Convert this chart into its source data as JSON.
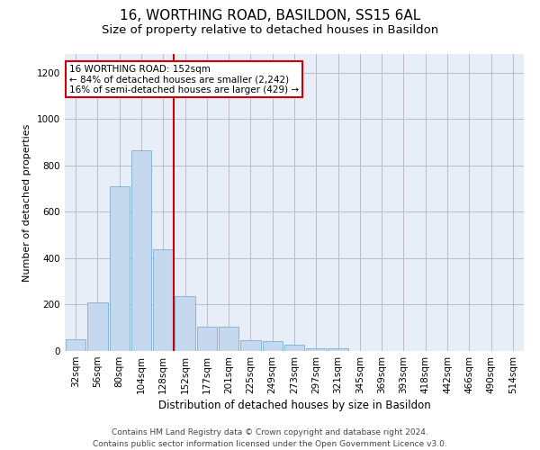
{
  "title": "16, WORTHING ROAD, BASILDON, SS15 6AL",
  "subtitle": "Size of property relative to detached houses in Basildon",
  "xlabel": "Distribution of detached houses by size in Basildon",
  "ylabel": "Number of detached properties",
  "bar_color": "#c5d8ee",
  "bar_edge_color": "#7aadd4",
  "background_color": "#ffffff",
  "plot_bg_color": "#e8eef8",
  "grid_color": "#bbbbcc",
  "categories": [
    "32sqm",
    "56sqm",
    "80sqm",
    "104sqm",
    "128sqm",
    "152sqm",
    "177sqm",
    "201sqm",
    "225sqm",
    "249sqm",
    "273sqm",
    "297sqm",
    "321sqm",
    "345sqm",
    "369sqm",
    "393sqm",
    "418sqm",
    "442sqm",
    "466sqm",
    "490sqm",
    "514sqm"
  ],
  "values": [
    50,
    210,
    710,
    865,
    440,
    235,
    105,
    105,
    48,
    42,
    27,
    10,
    10,
    0,
    0,
    0,
    0,
    0,
    0,
    0,
    0
  ],
  "ylim": [
    0,
    1280
  ],
  "yticks": [
    0,
    200,
    400,
    600,
    800,
    1000,
    1200
  ],
  "property_idx": 5,
  "property_line_label": "16 WORTHING ROAD: 152sqm",
  "annotation_line1": "← 84% of detached houses are smaller (2,242)",
  "annotation_line2": "16% of semi-detached houses are larger (429) →",
  "annotation_box_color": "#ffffff",
  "annotation_box_edge_color": "#cc0000",
  "vline_color": "#cc0000",
  "footnote": "Contains HM Land Registry data © Crown copyright and database right 2024.\nContains public sector information licensed under the Open Government Licence v3.0.",
  "title_fontsize": 11,
  "subtitle_fontsize": 9.5,
  "xlabel_fontsize": 8.5,
  "ylabel_fontsize": 8,
  "tick_fontsize": 7.5,
  "annot_fontsize": 7.5,
  "footnote_fontsize": 6.5
}
